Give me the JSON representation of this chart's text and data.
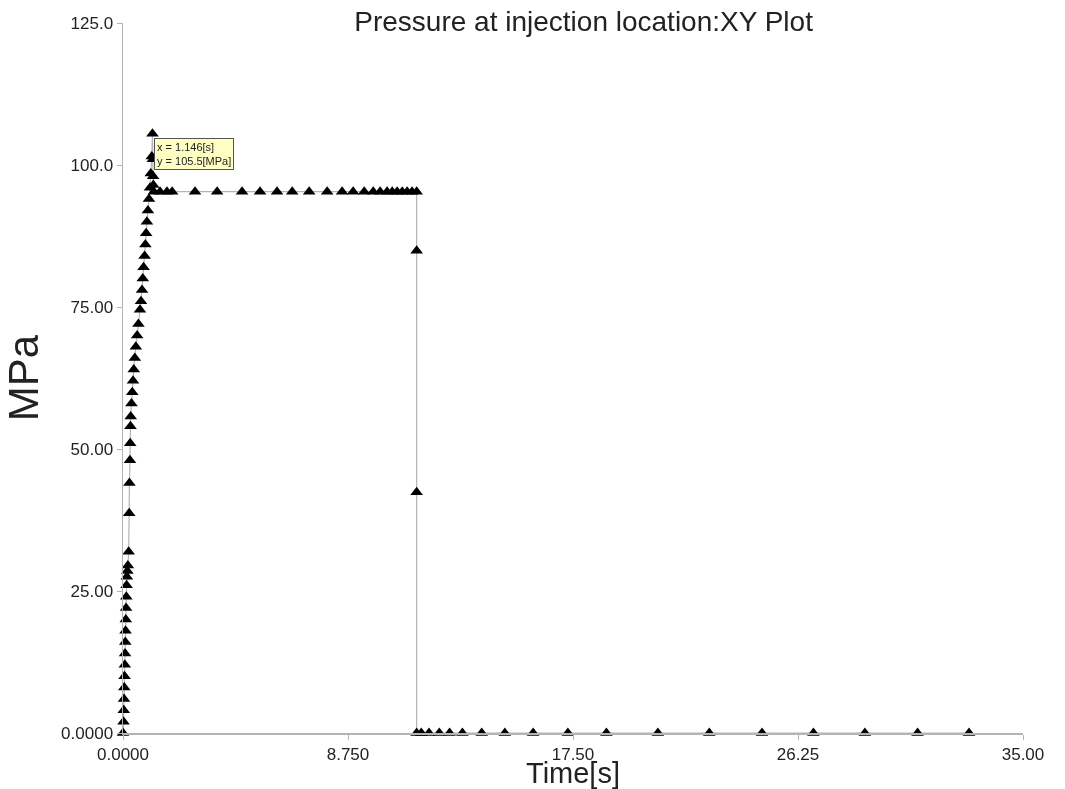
{
  "chart_data": {
    "type": "line",
    "title": "Pressure at injection location:XY Plot",
    "xlabel": "Time[s]",
    "ylabel": "MPa",
    "x": [
      0,
      0.02,
      0.03,
      0.04,
      0.05,
      0.06,
      0.07,
      0.08,
      0.09,
      0.1,
      0.11,
      0.12,
      0.13,
      0.14,
      0.15,
      0.17,
      0.19,
      0.22,
      0.24,
      0.25,
      0.27,
      0.28,
      0.29,
      0.3,
      0.33,
      0.36,
      0.39,
      0.42,
      0.46,
      0.5,
      0.55,
      0.6,
      0.66,
      0.7,
      0.74,
      0.77,
      0.8,
      0.84,
      0.87,
      0.9,
      0.93,
      0.97,
      1.01,
      1.05,
      1.08,
      1.12,
      1.146,
      1.16,
      1.17,
      1.18,
      1.2,
      1.44,
      1.71,
      1.91,
      2.8,
      3.66,
      4.63,
      5.33,
      5.99,
      6.58,
      7.24,
      7.94,
      8.52,
      8.95,
      9.38,
      9.73,
      10.0,
      10.27,
      10.47,
      10.66,
      10.86,
      11.05,
      11.24,
      11.42,
      11.42,
      11.42,
      11.42,
      11.6,
      11.9,
      12.3,
      12.7,
      13.2,
      13.95,
      14.85,
      15.95,
      17.3,
      18.8,
      20.8,
      22.8,
      24.85,
      26.85,
      28.85,
      30.9,
      32.9
    ],
    "values": [
      0,
      2,
      4,
      6,
      8,
      10,
      12,
      14,
      16,
      18,
      20,
      22,
      24,
      26,
      27.5,
      28.5,
      29.5,
      31.9,
      38.7,
      44,
      48,
      51,
      54,
      55.7,
      58,
      60,
      62,
      64,
      66,
      68,
      70,
      72,
      74.5,
      76,
      78,
      80,
      82,
      84,
      86,
      88,
      90,
      92,
      94,
      96,
      98.5,
      101.5,
      105.5,
      101,
      98,
      96.5,
      95.3,
      95.3,
      95.3,
      95.3,
      95.3,
      95.3,
      95.3,
      95.3,
      95.3,
      95.3,
      95.3,
      95.3,
      95.3,
      95.3,
      95.3,
      95.3,
      95.3,
      95.3,
      95.3,
      95.3,
      95.3,
      95.3,
      95.3,
      95.3,
      84.9,
      42.4,
      0,
      0,
      0,
      0,
      0,
      0,
      0,
      0,
      0,
      0,
      0,
      0,
      0,
      0,
      0,
      0,
      0,
      0
    ],
    "color": "#000000",
    "marker": "triangle",
    "line_style": "solid",
    "xlim": [
      0,
      35
    ],
    "xticks": [
      {
        "value": 0,
        "label": "0.0000"
      },
      {
        "value": 8.75,
        "label": "8.750"
      },
      {
        "value": 17.5,
        "label": "17.50"
      },
      {
        "value": 26.25,
        "label": "26.25"
      },
      {
        "value": 35,
        "label": "35.00"
      }
    ],
    "ylim": [
      0,
      125
    ],
    "yticks": [
      {
        "value": 0,
        "label": "0.0000"
      },
      {
        "value": 25,
        "label": "25.00"
      },
      {
        "value": 50,
        "label": "50.00"
      },
      {
        "value": 75,
        "label": "75.00"
      },
      {
        "value": 100,
        "label": "100.0"
      },
      {
        "value": 125,
        "label": "125.0"
      }
    ],
    "grid": false,
    "annotations": [
      {
        "text": "x = 1.146[s]\ny = 105.5[MPa]",
        "x": 1.146,
        "y": 105.5
      }
    ]
  }
}
